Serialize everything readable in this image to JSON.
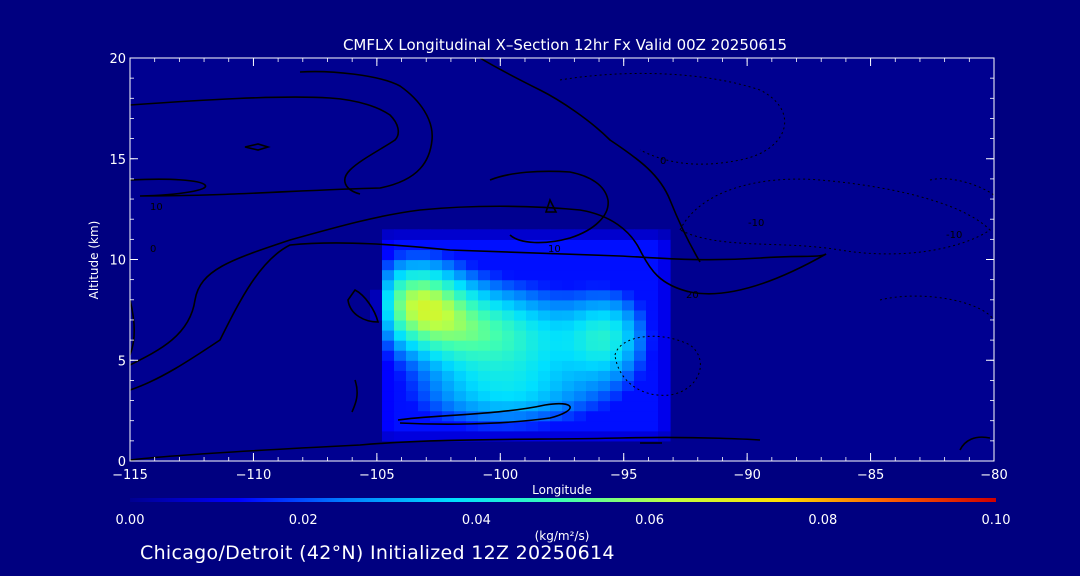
{
  "chart_data": {
    "type": "heatmap",
    "title": "CMFLX Longitudinal X–Section 12hr  Fx Valid 00Z 20250615",
    "xlabel": "Longitude",
    "ylabel": "Altitude (km)",
    "xlim": [
      -115,
      -80
    ],
    "ylim": [
      0,
      20
    ],
    "x_ticks": [
      -115,
      -110,
      -105,
      -100,
      -95,
      -90,
      -85,
      -80
    ],
    "x_tick_labels": [
      "−115",
      "−110",
      "−105",
      "−100",
      "−95",
      "−90",
      "−85",
      "−80"
    ],
    "y_ticks": [
      0,
      5,
      10,
      15,
      20
    ],
    "y_tick_labels": [
      "0",
      "5",
      "10",
      "15",
      "20"
    ],
    "colorbar": {
      "range": [
        0.0,
        0.1
      ],
      "ticks": [
        "0.00",
        "0.02",
        "0.04",
        "0.06",
        "0.08",
        "0.10"
      ],
      "unit_label": "(kg/m²/s)",
      "colors": [
        "#000090",
        "#0000ff",
        "#0080ff",
        "#00e0ff",
        "#40ffb0",
        "#c0ff40",
        "#ffe000",
        "#ff6000",
        "#d00000"
      ]
    },
    "field": {
      "description_units": "kg/m2/s",
      "blobs": [
        {
          "lon": -103.5,
          "alt": 8.0,
          "peak": 0.048,
          "sx": 1.4,
          "sy": 1.6
        },
        {
          "lon": -101.5,
          "alt": 6.5,
          "peak": 0.036,
          "sx": 1.8,
          "sy": 1.8
        },
        {
          "lon": -98.5,
          "alt": 6.0,
          "peak": 0.03,
          "sx": 2.0,
          "sy": 2.0
        },
        {
          "lon": -95.5,
          "alt": 6.2,
          "peak": 0.033,
          "sx": 1.2,
          "sy": 1.7
        },
        {
          "lon": -100.0,
          "alt": 3.0,
          "peak": 0.024,
          "sx": 3.0,
          "sy": 1.2
        },
        {
          "lon": -99.0,
          "alt": 11.8,
          "peak": 0.02,
          "sx": 1.2,
          "sy": 0.5
        }
      ],
      "box": {
        "lon_min": -105,
        "lon_max": -93,
        "alt_min": 1.0,
        "alt_max": 11.5,
        "fill_value": 0.014
      }
    },
    "contour_labels": [
      "0",
      "10",
      "20",
      "10",
      "-10",
      "-10",
      "0"
    ]
  },
  "footer": {
    "text": "Chicago/Detroit (42°N) Initialized 12Z 20250614"
  }
}
